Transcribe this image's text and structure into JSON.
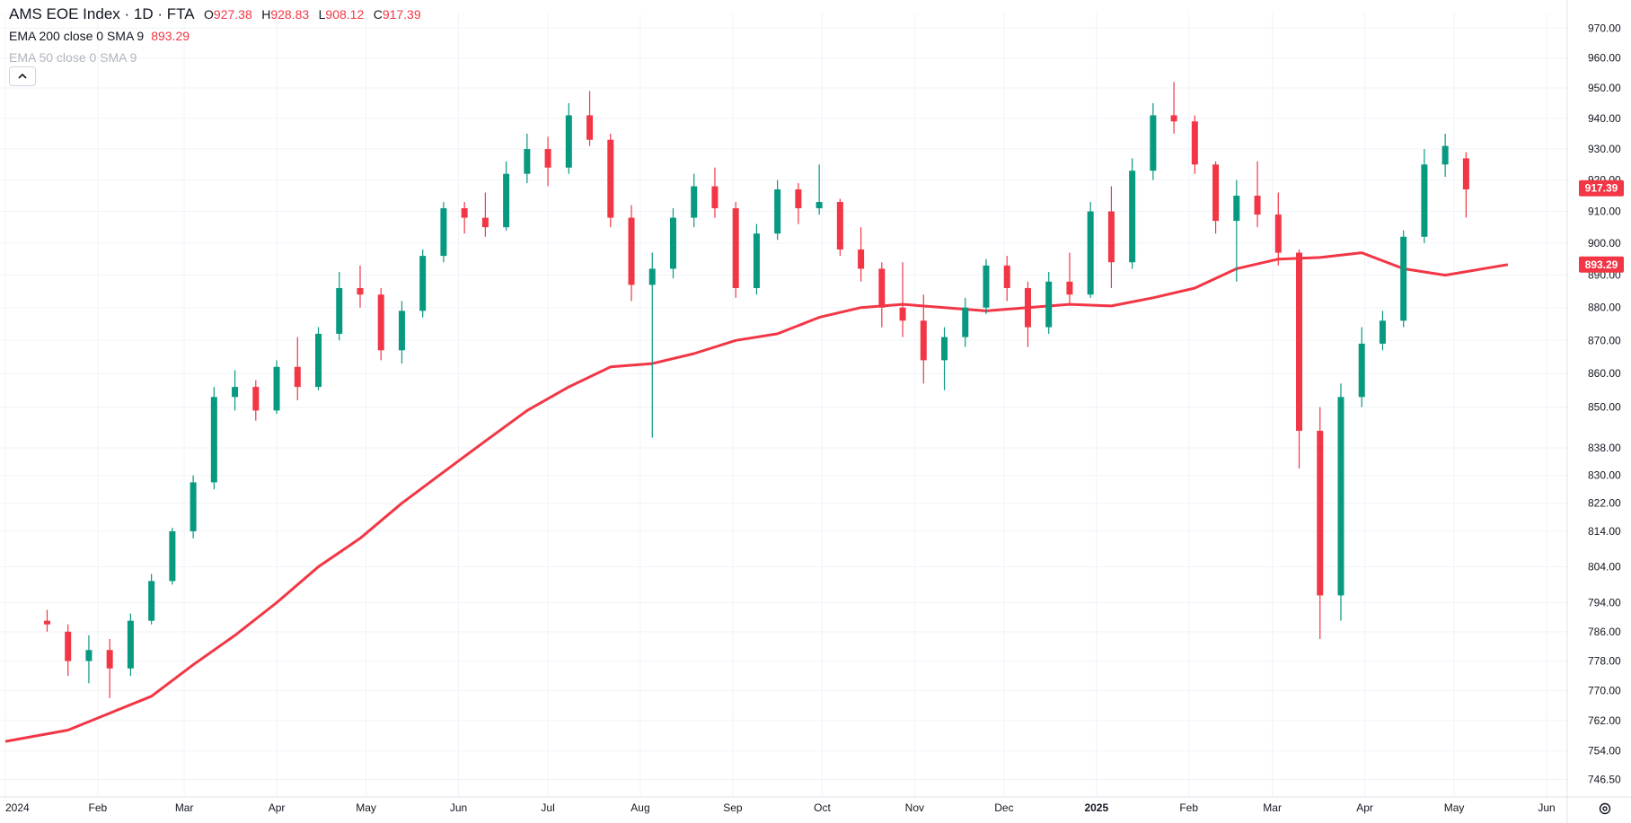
{
  "header": {
    "title": "AMS EOE Index · 1D · FTA",
    "ohlc": [
      {
        "label": "O",
        "value": "927.38"
      },
      {
        "label": "H",
        "value": "928.83"
      },
      {
        "label": "L",
        "value": "908.12"
      },
      {
        "label": "C",
        "value": "917.39"
      }
    ],
    "indicators": [
      {
        "text": "EMA 200 close 0 SMA 9",
        "value": "893.29"
      },
      {
        "text": "EMA 50 close 0 SMA 9"
      }
    ]
  },
  "icons": {
    "collapse": "chevron-up-icon",
    "settings": "gear-icon"
  },
  "colors": {
    "up": "#089981",
    "down": "#f23645",
    "ema": "#f23645",
    "grid": "#f0f3fa",
    "axis_text": "#131722"
  },
  "chart_data": {
    "type": "candlestick",
    "title": "AMS EOE Index",
    "interval": "1D",
    "y_axis": {
      "scale": "log",
      "ticks": [
        "970.00",
        "960.00",
        "950.00",
        "940.00",
        "930.00",
        "920.00",
        "910.00",
        "900.00",
        "890.00",
        "880.00",
        "870.00",
        "860.00",
        "850.00",
        "838.00",
        "830.00",
        "822.00",
        "814.00",
        "804.00",
        "794.00",
        "786.00",
        "778.00",
        "770.00",
        "762.00",
        "754.00",
        "746.50"
      ],
      "range": [
        742,
        975
      ],
      "position": "right"
    },
    "x_axis": {
      "ticks": [
        "2024",
        "Feb",
        "Mar",
        "Apr",
        "May",
        "Jun",
        "Jul",
        "Aug",
        "Sep",
        "Oct",
        "Nov",
        "Dec",
        "2025",
        "Feb",
        "Mar",
        "Apr",
        "May",
        "Jun"
      ],
      "bold": [
        false,
        false,
        false,
        false,
        false,
        false,
        false,
        false,
        false,
        false,
        false,
        false,
        true,
        false,
        false,
        false,
        false,
        false
      ]
    },
    "series": [
      {
        "name": "AMS EOE Index",
        "kind": "candles",
        "points": [
          [
            "2024-01-15",
            789,
            792,
            786,
            788
          ],
          [
            "2024-01-22",
            786,
            788,
            774,
            778
          ],
          [
            "2024-01-29",
            778,
            785,
            772,
            781
          ],
          [
            "2024-02-05",
            781,
            784,
            768,
            776
          ],
          [
            "2024-02-12",
            776,
            791,
            774,
            789
          ],
          [
            "2024-02-19",
            789,
            802,
            788,
            800
          ],
          [
            "2024-02-26",
            800,
            815,
            799,
            814
          ],
          [
            "2024-03-04",
            814,
            830,
            812,
            828
          ],
          [
            "2024-03-11",
            828,
            856,
            826,
            853
          ],
          [
            "2024-03-18",
            853,
            861,
            849,
            856
          ],
          [
            "2024-03-25",
            856,
            858,
            846,
            849
          ],
          [
            "2024-04-01",
            849,
            864,
            848,
            862
          ],
          [
            "2024-04-08",
            862,
            871,
            852,
            856
          ],
          [
            "2024-04-15",
            856,
            874,
            855,
            872
          ],
          [
            "2024-04-22",
            872,
            891,
            870,
            886
          ],
          [
            "2024-04-29",
            886,
            893,
            880,
            884
          ],
          [
            "2024-05-06",
            884,
            886,
            864,
            867
          ],
          [
            "2024-05-13",
            867,
            882,
            863,
            879
          ],
          [
            "2024-05-20",
            879,
            898,
            877,
            896
          ],
          [
            "2024-05-27",
            896,
            913,
            894,
            911
          ],
          [
            "2024-06-03",
            911,
            913,
            903,
            908
          ],
          [
            "2024-06-10",
            908,
            916,
            902,
            905
          ],
          [
            "2024-06-17",
            905,
            926,
            904,
            922
          ],
          [
            "2024-06-24",
            922,
            935,
            919,
            930
          ],
          [
            "2024-07-01",
            930,
            934,
            918,
            924
          ],
          [
            "2024-07-08",
            924,
            945,
            922,
            941
          ],
          [
            "2024-07-15",
            941,
            949,
            931,
            933
          ],
          [
            "2024-07-22",
            933,
            935,
            905,
            908
          ],
          [
            "2024-07-29",
            908,
            912,
            882,
            887
          ],
          [
            "2024-08-05",
            887,
            897,
            841,
            892
          ],
          [
            "2024-08-12",
            892,
            911,
            889,
            908
          ],
          [
            "2024-08-19",
            908,
            922,
            905,
            918
          ],
          [
            "2024-08-26",
            918,
            924,
            908,
            911
          ],
          [
            "2024-09-02",
            911,
            913,
            883,
            886
          ],
          [
            "2024-09-09",
            886,
            906,
            884,
            903
          ],
          [
            "2024-09-16",
            903,
            920,
            901,
            917
          ],
          [
            "2024-09-23",
            917,
            919,
            906,
            911
          ],
          [
            "2024-09-30",
            911,
            925,
            909,
            913
          ],
          [
            "2024-10-07",
            913,
            914,
            896,
            898
          ],
          [
            "2024-10-14",
            898,
            905,
            888,
            892
          ],
          [
            "2024-10-21",
            892,
            894,
            874,
            880
          ],
          [
            "2024-10-28",
            880,
            894,
            871,
            876
          ],
          [
            "2024-11-04",
            876,
            884,
            857,
            864
          ],
          [
            "2024-11-11",
            864,
            874,
            855,
            871
          ],
          [
            "2024-11-18",
            871,
            883,
            868,
            880
          ],
          [
            "2024-11-25",
            880,
            895,
            878,
            893
          ],
          [
            "2024-12-02",
            893,
            896,
            882,
            886
          ],
          [
            "2024-12-09",
            886,
            888,
            868,
            874
          ],
          [
            "2024-12-16",
            874,
            891,
            872,
            888
          ],
          [
            "2024-12-23",
            888,
            897,
            881,
            884
          ],
          [
            "2024-12-30",
            884,
            913,
            883,
            910
          ],
          [
            "2025-01-06",
            910,
            918,
            886,
            894
          ],
          [
            "2025-01-13",
            894,
            927,
            892,
            923
          ],
          [
            "2025-01-20",
            923,
            945,
            920,
            941
          ],
          [
            "2025-01-27",
            941,
            952,
            935,
            939
          ],
          [
            "2025-02-03",
            939,
            941,
            922,
            925
          ],
          [
            "2025-02-10",
            925,
            926,
            903,
            907
          ],
          [
            "2025-02-17",
            907,
            920,
            888,
            915
          ],
          [
            "2025-02-24",
            915,
            926,
            905,
            909
          ],
          [
            "2025-03-03",
            909,
            916,
            893,
            897
          ],
          [
            "2025-03-10",
            897,
            898,
            832,
            843
          ],
          [
            "2025-03-17",
            843,
            850,
            784,
            796
          ],
          [
            "2025-03-24",
            796,
            857,
            789,
            853
          ],
          [
            "2025-03-31",
            853,
            874,
            850,
            869
          ],
          [
            "2025-04-07",
            869,
            879,
            867,
            876
          ],
          [
            "2025-04-14",
            876,
            904,
            874,
            902
          ],
          [
            "2025-04-21",
            902,
            930,
            900,
            925
          ],
          [
            "2025-04-28",
            925,
            935,
            921,
            931
          ],
          [
            "2025-05-05",
            927,
            929,
            908,
            917
          ]
        ]
      },
      {
        "name": "EMA 200",
        "kind": "line",
        "points": [
          [
            "2024-01-01",
            756.5
          ],
          [
            "2024-01-22",
            759.5
          ],
          [
            "2024-02-05",
            764
          ],
          [
            "2024-02-19",
            768.5
          ],
          [
            "2024-03-04",
            777
          ],
          [
            "2024-03-18",
            785
          ],
          [
            "2024-04-01",
            794
          ],
          [
            "2024-04-15",
            804
          ],
          [
            "2024-04-29",
            812
          ],
          [
            "2024-05-13",
            822
          ],
          [
            "2024-05-27",
            831
          ],
          [
            "2024-06-10",
            840
          ],
          [
            "2024-06-24",
            849
          ],
          [
            "2024-07-08",
            856
          ],
          [
            "2024-07-22",
            862
          ],
          [
            "2024-08-05",
            863
          ],
          [
            "2024-08-19",
            866
          ],
          [
            "2024-09-02",
            870
          ],
          [
            "2024-09-16",
            872
          ],
          [
            "2024-09-30",
            877
          ],
          [
            "2024-10-14",
            880
          ],
          [
            "2024-10-28",
            881
          ],
          [
            "2024-11-11",
            880
          ],
          [
            "2024-11-25",
            879
          ],
          [
            "2024-12-09",
            880
          ],
          [
            "2024-12-23",
            881
          ],
          [
            "2025-01-06",
            880.5
          ],
          [
            "2025-01-20",
            883
          ],
          [
            "2025-02-03",
            886
          ],
          [
            "2025-02-17",
            892
          ],
          [
            "2025-03-03",
            895
          ],
          [
            "2025-03-17",
            895.5
          ],
          [
            "2025-03-31",
            897
          ],
          [
            "2025-04-14",
            892
          ],
          [
            "2025-04-28",
            890
          ],
          [
            "2025-05-19",
            893.29
          ]
        ]
      }
    ],
    "price_labels": [
      {
        "value": "917.39",
        "y": 917.39,
        "color": "#f23645"
      },
      {
        "value": "893.29",
        "y": 893.29,
        "color": "#f23645"
      }
    ],
    "grid": true,
    "legend": "top-left"
  }
}
